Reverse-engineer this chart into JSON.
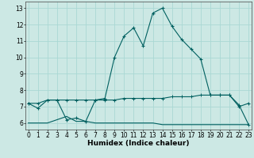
{
  "xlabel": "Humidex (Indice chaleur)",
  "bg_color": "#cce8e4",
  "grid_color": "#aad8d4",
  "line_color": "#006060",
  "line1_x": [
    0,
    1,
    2,
    3,
    4,
    5,
    6,
    7,
    8,
    9,
    10,
    11,
    12,
    13,
    14,
    15,
    16,
    17,
    18,
    19,
    20,
    21,
    22,
    23
  ],
  "line1_y": [
    7.2,
    6.9,
    7.4,
    7.4,
    6.2,
    6.3,
    6.1,
    7.4,
    7.5,
    10.0,
    11.3,
    11.8,
    10.7,
    12.7,
    13.0,
    11.9,
    11.1,
    10.5,
    9.9,
    7.7,
    7.7,
    7.7,
    7.0,
    7.2
  ],
  "line2_x": [
    0,
    1,
    2,
    3,
    4,
    5,
    6,
    7,
    8,
    9,
    10,
    11,
    12,
    13,
    14,
    15,
    16,
    17,
    18,
    19,
    20,
    21,
    22,
    23
  ],
  "line2_y": [
    7.2,
    7.2,
    7.4,
    7.4,
    7.4,
    7.4,
    7.4,
    7.4,
    7.4,
    7.4,
    7.5,
    7.5,
    7.5,
    7.5,
    7.5,
    7.6,
    7.6,
    7.6,
    7.7,
    7.7,
    7.7,
    7.7,
    7.1,
    5.9
  ],
  "line3_x": [
    0,
    1,
    2,
    3,
    4,
    5,
    6,
    7,
    8,
    9,
    10,
    11,
    12,
    13,
    14,
    15,
    16,
    17,
    18,
    19,
    20,
    21,
    22,
    23
  ],
  "line3_y": [
    6.0,
    6.0,
    6.0,
    6.2,
    6.4,
    6.1,
    6.1,
    6.0,
    6.0,
    6.0,
    6.0,
    6.0,
    6.0,
    6.0,
    5.9,
    5.9,
    5.9,
    5.9,
    5.9,
    5.9,
    5.9,
    5.9,
    5.9,
    5.9
  ],
  "xlim": [
    -0.3,
    23.3
  ],
  "ylim": [
    5.6,
    13.4
  ],
  "yticks": [
    6,
    7,
    8,
    9,
    10,
    11,
    12,
    13
  ],
  "xticks": [
    0,
    1,
    2,
    3,
    4,
    5,
    6,
    7,
    8,
    9,
    10,
    11,
    12,
    13,
    14,
    15,
    16,
    17,
    18,
    19,
    20,
    21,
    22,
    23
  ],
  "xlabel_fontsize": 6.5,
  "tick_fontsize": 5.5
}
